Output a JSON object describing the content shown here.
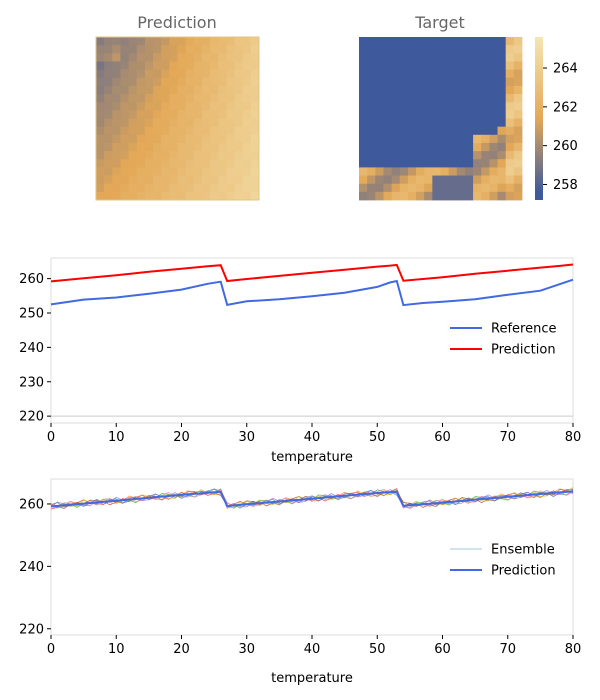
{
  "heatmaps": {
    "prediction_title": "Prediction",
    "target_title": "Target",
    "colorbar_ticks": [
      258,
      260,
      262,
      264
    ],
    "colorbar_range": [
      257.2,
      265.6
    ],
    "colormap": [
      "#3f5a9c",
      "#e3a857",
      "#f5e6b3"
    ],
    "grid_size": 20
  },
  "chart_data": [
    {
      "type": "line",
      "xlabel": "temperature",
      "ylabel": "",
      "xlim": [
        0,
        80
      ],
      "ylim": [
        218,
        266
      ],
      "x_ticks": [
        0,
        10,
        20,
        30,
        40,
        50,
        60,
        70,
        80
      ],
      "y_ticks": [
        220,
        230,
        240,
        250,
        260
      ],
      "legend": "right",
      "x": [
        0,
        5,
        10,
        15,
        20,
        24,
        26,
        27,
        30,
        35,
        40,
        45,
        50,
        52,
        53,
        54,
        57,
        60,
        65,
        70,
        75,
        78,
        80
      ],
      "series": [
        {
          "name": "Reference",
          "color": "#4169e1",
          "values": [
            252.5,
            253.9,
            254.5,
            255.6,
            256.8,
            258.5,
            259.1,
            252.4,
            253.4,
            254.0,
            254.9,
            255.9,
            257.6,
            258.9,
            259.3,
            252.3,
            252.9,
            253.3,
            254.0,
            255.3,
            256.5,
            258.4,
            259.7
          ]
        },
        {
          "name": "Prediction",
          "color": "#ff0000",
          "values": [
            259.2,
            260.1,
            261.0,
            262.0,
            262.9,
            263.6,
            263.9,
            259.3,
            259.9,
            260.8,
            261.7,
            262.6,
            263.5,
            263.8,
            264.0,
            259.4,
            259.9,
            260.4,
            261.4,
            262.3,
            263.2,
            263.7,
            264.1
          ]
        }
      ]
    },
    {
      "type": "line",
      "xlabel": "temperature",
      "ylabel": "",
      "xlim": [
        0,
        80
      ],
      "ylim": [
        218,
        268
      ],
      "x_ticks": [
        0,
        10,
        20,
        30,
        40,
        50,
        60,
        70,
        80
      ],
      "y_ticks": [
        220,
        240,
        260
      ],
      "legend": "right",
      "ensemble_members": 8,
      "ensemble_colors": [
        "#1f77b4",
        "#ff7f0e",
        "#2ca02c",
        "#d62728",
        "#9467bd",
        "#8c564b",
        "#e377c2",
        "#bcbd22"
      ],
      "x": [
        0,
        5,
        10,
        15,
        20,
        24,
        26,
        27,
        30,
        35,
        40,
        45,
        50,
        52,
        53,
        54,
        57,
        60,
        65,
        70,
        75,
        78,
        80
      ],
      "series": [
        {
          "name": "Ensemble",
          "color": "#7fb8d8",
          "values": [
            259.3,
            260.2,
            261.0,
            262.0,
            262.9,
            263.6,
            263.9,
            259.4,
            260.0,
            260.8,
            261.7,
            262.6,
            263.5,
            263.8,
            264.0,
            259.5,
            259.9,
            260.5,
            261.4,
            262.3,
            263.2,
            263.7,
            264.1
          ]
        },
        {
          "name": "Prediction",
          "color": "#4169e1",
          "values": [
            259.2,
            260.1,
            261.0,
            262.0,
            262.9,
            263.6,
            263.9,
            259.3,
            259.9,
            260.8,
            261.7,
            262.6,
            263.5,
            263.8,
            264.0,
            259.4,
            259.9,
            260.4,
            261.4,
            262.3,
            263.2,
            263.7,
            264.1
          ]
        }
      ]
    }
  ]
}
